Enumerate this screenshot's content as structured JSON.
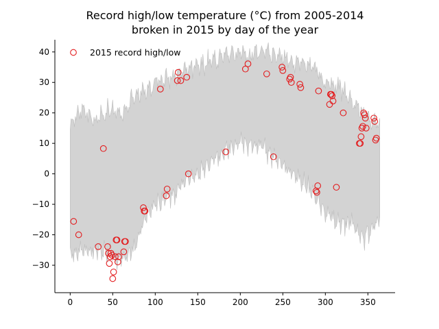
{
  "chart_data": {
    "type": "scatter",
    "title": "Record high/low temperature (°C) from 2005-2014\nbroken in 2015 by day of the year",
    "xlabel": "",
    "ylabel": "",
    "xlim": [
      -18,
      382
    ],
    "ylim": [
      -39,
      44
    ],
    "xticks": [
      0,
      50,
      100,
      150,
      200,
      250,
      300,
      350
    ],
    "yticks": [
      -30,
      -20,
      -10,
      0,
      10,
      20,
      30,
      40
    ],
    "grid": false,
    "legend": {
      "placement": "top-left",
      "entries": [
        "2015 record high/low"
      ]
    },
    "colors": {
      "band": "#d3d3d3",
      "band_edge": "#bdbdbd",
      "marker": "#e31a1c"
    },
    "band": {
      "name": "Record high/low 2005-2014",
      "days": [
        0,
        15,
        30,
        45,
        60,
        75,
        90,
        105,
        120,
        135,
        150,
        165,
        180,
        195,
        210,
        225,
        240,
        255,
        270,
        285,
        300,
        315,
        330,
        345,
        364
      ],
      "high": [
        16,
        21,
        17,
        21,
        20,
        25,
        27,
        31,
        32,
        34,
        35,
        37,
        38,
        40,
        39,
        40,
        39,
        38,
        36,
        35,
        30,
        29,
        24,
        20,
        16
      ],
      "low": [
        -27,
        -25,
        -25,
        -26,
        -29,
        -25,
        -13,
        -9,
        -7,
        -3,
        0,
        4,
        7,
        10,
        10,
        9,
        5,
        2,
        -2,
        -6,
        -13,
        -16,
        -16,
        -21,
        -15
      ]
    },
    "series": [
      {
        "name": "2015 record high/low",
        "points": [
          [
            4,
            -15.6
          ],
          [
            10,
            -20.0
          ],
          [
            33,
            -23.9
          ],
          [
            39,
            8.3
          ],
          [
            44,
            -23.9
          ],
          [
            45,
            -26.1
          ],
          [
            46,
            -29.4
          ],
          [
            47,
            -27.2
          ],
          [
            48,
            -26.1
          ],
          [
            49,
            -26.7
          ],
          [
            50,
            -34.4
          ],
          [
            51,
            -32.2
          ],
          [
            53,
            -27.2
          ],
          [
            54,
            -21.7
          ],
          [
            55,
            -21.7
          ],
          [
            56,
            -28.9
          ],
          [
            57,
            -27.2
          ],
          [
            63,
            -25.6
          ],
          [
            64,
            -22.2
          ],
          [
            65,
            -22.2
          ],
          [
            86,
            -11.1
          ],
          [
            87,
            -12.2
          ],
          [
            88,
            -12.2
          ],
          [
            106,
            27.8
          ],
          [
            113,
            -7.2
          ],
          [
            114,
            -5.0
          ],
          [
            126,
            30.6
          ],
          [
            127,
            33.3
          ],
          [
            130,
            30.6
          ],
          [
            137,
            31.7
          ],
          [
            139,
            0.0
          ],
          [
            183,
            7.2
          ],
          [
            206,
            34.4
          ],
          [
            209,
            36.1
          ],
          [
            231,
            32.8
          ],
          [
            239,
            5.6
          ],
          [
            249,
            35.0
          ],
          [
            250,
            33.9
          ],
          [
            258,
            31.1
          ],
          [
            259,
            31.7
          ],
          [
            260,
            30.0
          ],
          [
            270,
            29.4
          ],
          [
            271,
            28.3
          ],
          [
            289,
            -5.6
          ],
          [
            290,
            -6.1
          ],
          [
            291,
            -3.9
          ],
          [
            292,
            27.2
          ],
          [
            305,
            22.8
          ],
          [
            306,
            26.1
          ],
          [
            307,
            26.1
          ],
          [
            308,
            25.6
          ],
          [
            309,
            23.9
          ],
          [
            313,
            -4.4
          ],
          [
            321,
            20.0
          ],
          [
            340,
            10.0
          ],
          [
            341,
            10.0
          ],
          [
            342,
            12.2
          ],
          [
            343,
            15.0
          ],
          [
            344,
            15.6
          ],
          [
            345,
            20.0
          ],
          [
            346,
            19.4
          ],
          [
            347,
            18.3
          ],
          [
            348,
            15.0
          ],
          [
            357,
            18.3
          ],
          [
            358,
            17.2
          ],
          [
            359,
            11.1
          ],
          [
            360,
            11.7
          ]
        ]
      }
    ]
  }
}
